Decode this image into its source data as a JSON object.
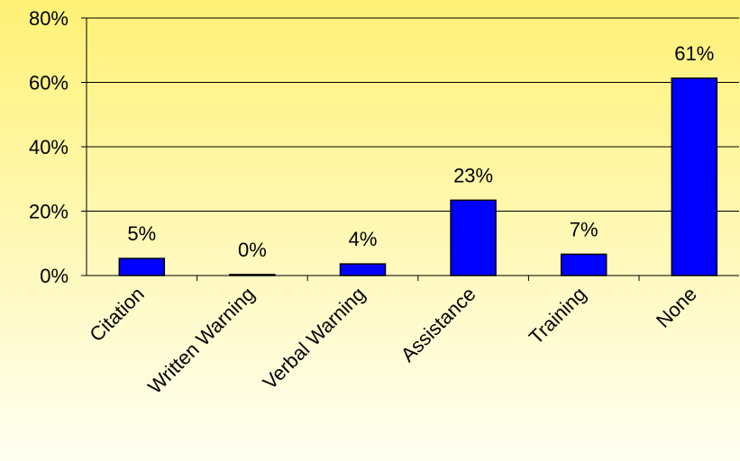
{
  "chart_data": {
    "type": "bar",
    "categories": [
      "Citation",
      "Written Warning",
      "Verbal Warning",
      "Assistance",
      "Training",
      "None"
    ],
    "values": [
      5.3,
      0.3,
      3.6,
      23.4,
      6.6,
      61.3
    ],
    "value_labels": [
      "5%",
      "0%",
      "4%",
      "23%",
      "7%",
      "61%"
    ],
    "color": "#0000ff",
    "ylim": [
      0,
      80
    ],
    "yticks": [
      {
        "value": 0,
        "label": "0%"
      },
      {
        "value": 20,
        "label": "20%"
      },
      {
        "value": 40,
        "label": "40%"
      },
      {
        "value": 60,
        "label": "60%"
      },
      {
        "value": 80,
        "label": "80%"
      }
    ],
    "grid": true
  }
}
